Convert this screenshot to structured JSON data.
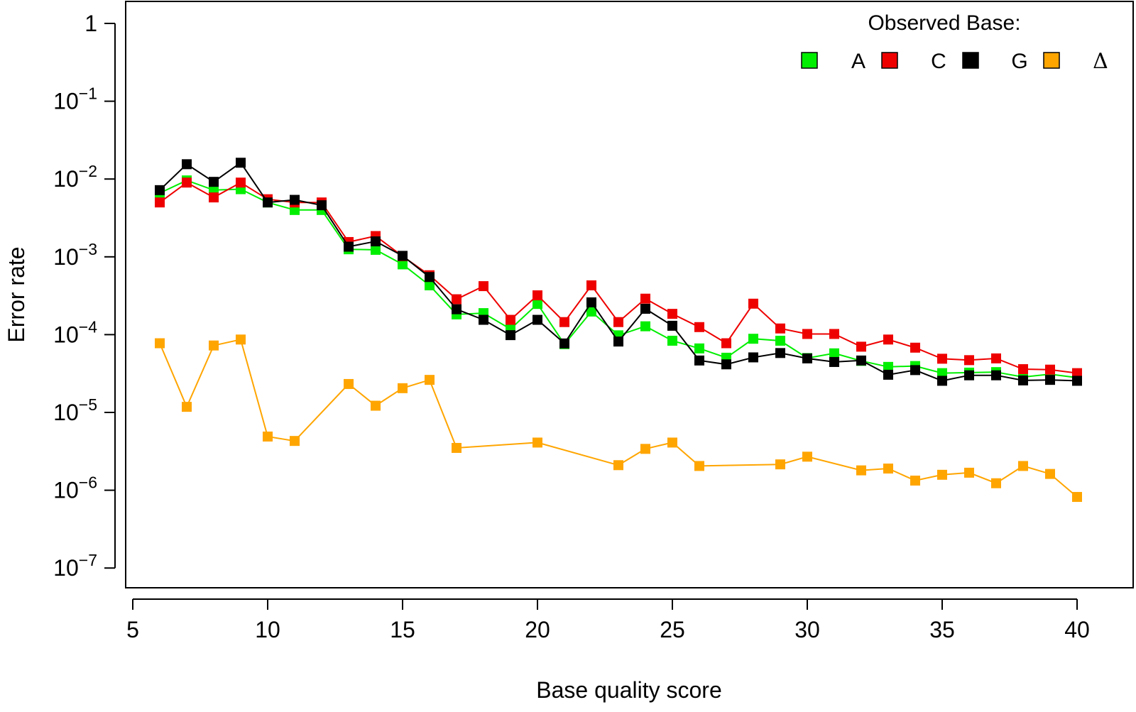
{
  "chart_data": {
    "type": "line",
    "title": "",
    "xlabel": "Base quality score",
    "ylabel": "Error rate",
    "x_scale": "linear",
    "y_scale": "log10",
    "xlim": [
      4.5,
      41.3
    ],
    "ylim": [
      3.2e-08,
      10
    ],
    "x_ticks": [
      5,
      10,
      15,
      20,
      25,
      30,
      35,
      40
    ],
    "x_tick_labels": [
      "5",
      "10",
      "15",
      "20",
      "25",
      "30",
      "35",
      "40"
    ],
    "y_ticks": [
      1,
      0.1,
      0.01,
      0.001,
      0.0001,
      1e-05,
      1e-06,
      1e-07
    ],
    "y_tick_labels": [
      {
        "base": "1",
        "exp": ""
      },
      {
        "base": "10",
        "exp": "−1"
      },
      {
        "base": "10",
        "exp": "−2"
      },
      {
        "base": "10",
        "exp": "−3"
      },
      {
        "base": "10",
        "exp": "−4"
      },
      {
        "base": "10",
        "exp": "−5"
      },
      {
        "base": "10",
        "exp": "−6"
      },
      {
        "base": "10",
        "exp": "−7"
      }
    ],
    "grid": false,
    "legend_title": "Observed Base:",
    "legend_position": "top-right",
    "series": [
      {
        "name": "A",
        "color": "#00ee00",
        "x": [
          6,
          7,
          8,
          9,
          10,
          11,
          12,
          13,
          14,
          15,
          16,
          17,
          18,
          19,
          20,
          21,
          22,
          23,
          24,
          25,
          26,
          27,
          28,
          29,
          30,
          31,
          32,
          33,
          34,
          35,
          36,
          37,
          38,
          39,
          40
        ],
        "y": [
          0.0066,
          0.0096,
          0.0072,
          0.0074,
          0.005,
          0.004,
          0.004,
          0.00125,
          0.00123,
          0.0008,
          0.00043,
          0.000182,
          0.000189,
          0.000118,
          0.000248,
          7.55e-05,
          0.000198,
          9.8e-05,
          0.000128,
          8.35e-05,
          6.65e-05,
          5.05e-05,
          8.85e-05,
          8.35e-05,
          5e-05,
          5.75e-05,
          4.6e-05,
          3.85e-05,
          3.95e-05,
          3.2e-05,
          3.25e-05,
          3.3e-05,
          2.85e-05,
          3.1e-05,
          2.8e-05
        ]
      },
      {
        "name": "C",
        "color": "#ee0000",
        "x": [
          6,
          7,
          8,
          9,
          10,
          11,
          12,
          13,
          14,
          15,
          16,
          17,
          18,
          19,
          20,
          21,
          22,
          23,
          24,
          25,
          26,
          27,
          28,
          29,
          30,
          31,
          32,
          33,
          34,
          35,
          36,
          37,
          38,
          39,
          40
        ],
        "y": [
          0.005,
          0.009,
          0.0058,
          0.009,
          0.0055,
          0.005,
          0.005,
          0.00155,
          0.00185,
          0.00102,
          0.00058,
          0.000285,
          0.00042,
          0.000155,
          0.00032,
          0.000145,
          0.00043,
          0.000145,
          0.00029,
          0.000185,
          0.000125,
          7.75e-05,
          0.00025,
          0.00012,
          0.000102,
          0.000102,
          7e-05,
          8.65e-05,
          6.8e-05,
          4.9e-05,
          4.7e-05,
          4.95e-05,
          3.6e-05,
          3.55e-05,
          3.2e-05
        ]
      },
      {
        "name": "G",
        "color": "#000000",
        "x": [
          6,
          7,
          8,
          9,
          10,
          11,
          12,
          13,
          14,
          15,
          16,
          17,
          18,
          19,
          20,
          21,
          22,
          23,
          24,
          25,
          26,
          27,
          28,
          29,
          30,
          31,
          32,
          33,
          34,
          35,
          36,
          37,
          38,
          39,
          40
        ],
        "y": [
          0.0072,
          0.0155,
          0.0092,
          0.0162,
          0.005,
          0.0054,
          0.0046,
          0.00135,
          0.00158,
          0.00103,
          0.00055,
          0.000212,
          0.000155,
          9.85e-05,
          0.000155,
          7.7e-05,
          0.00026,
          8.15e-05,
          0.000215,
          0.00013,
          4.65e-05,
          4.15e-05,
          5.1e-05,
          5.8e-05,
          4.95e-05,
          4.45e-05,
          4.65e-05,
          3.05e-05,
          3.5e-05,
          2.55e-05,
          3e-05,
          3e-05,
          2.58e-05,
          2.62e-05,
          2.55e-05
        ]
      },
      {
        "name": "Δ",
        "color": "#ffa500",
        "x": [
          6,
          7,
          8,
          9,
          10,
          11,
          13,
          14,
          15,
          16,
          17,
          20,
          23,
          24,
          25,
          26,
          29,
          30,
          32,
          33,
          34,
          35,
          36,
          37,
          38,
          39,
          40
        ],
        "y": [
          7.75e-05,
          1.18e-05,
          7.25e-05,
          8.65e-05,
          4.9e-06,
          4.3e-06,
          2.32e-05,
          1.22e-05,
          2.05e-05,
          2.62e-05,
          3.5e-06,
          4.1e-06,
          2.1e-06,
          3.4e-06,
          4.1e-06,
          2.05e-06,
          2.15e-06,
          2.7e-06,
          1.8e-06,
          1.9e-06,
          1.33e-06,
          1.58e-06,
          1.68e-06,
          1.23e-06,
          2.05e-06,
          1.62e-06,
          8.2e-07
        ]
      }
    ]
  }
}
